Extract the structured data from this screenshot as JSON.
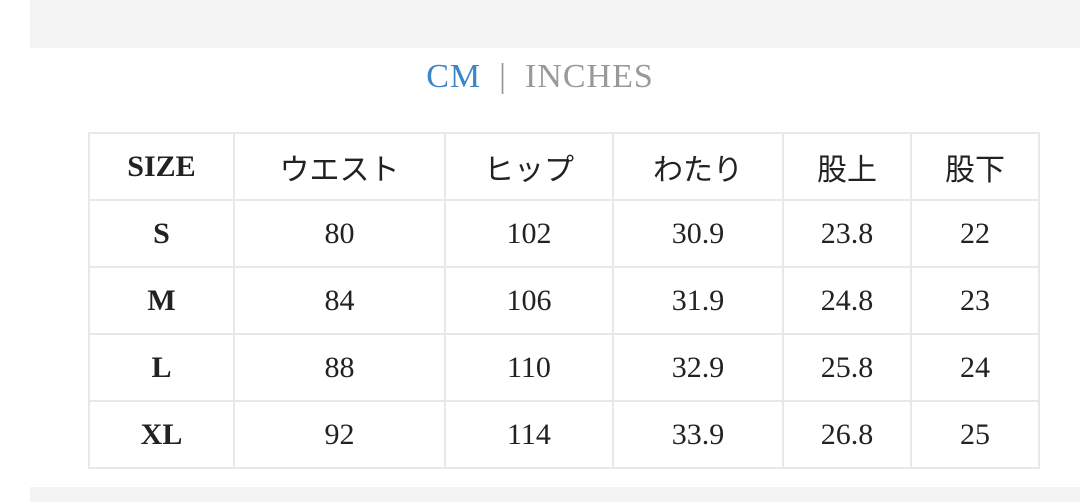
{
  "unit_toggle": {
    "cm": "CM",
    "separator": "|",
    "inches": "INCHES",
    "active": "CM",
    "active_color": "#3a86c8"
  },
  "table": {
    "headers": [
      "SIZE",
      "ウエスト",
      "ヒップ",
      "わたり",
      "股上",
      "股下"
    ],
    "rows": [
      [
        "S",
        "80",
        "102",
        "30.9",
        "23.8",
        "22"
      ],
      [
        "M",
        "84",
        "106",
        "31.9",
        "24.8",
        "23"
      ],
      [
        "L",
        "88",
        "110",
        "32.9",
        "25.8",
        "24"
      ],
      [
        "XL",
        "92",
        "114",
        "33.9",
        "26.8",
        "25"
      ]
    ]
  }
}
